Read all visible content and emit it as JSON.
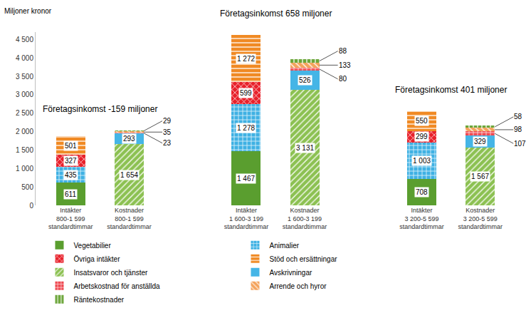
{
  "chart_data": {
    "type": "bar",
    "stacked": true,
    "data_labels": true,
    "grid": false,
    "legend": "bottom",
    "y_label": "Miljoner kronor",
    "annotations": [
      "Företagsinkomst -159 miljoner",
      "Företagsinkomst 658 miljoner",
      "Företagsinkomst 401 miljoner"
    ],
    "categories": [
      "Intäkter\n800-1 599\nstandardtimmar",
      "Kostnader\n800-1 599\nstandardtimmar",
      "Intäkter\n1 600-3 199\nstandardtimmar",
      "Kostnader\n1 600-3 199\nstandardtimmar",
      "Intäkter\n3 200-5 599\nstandardtimmar",
      "Kostnader\n3 200-5 599\nstandardtimmar"
    ],
    "ylim": [
      0,
      4700
    ],
    "yticks": [
      0,
      500,
      {
        "value": 1000,
        "label": "1 000"
      },
      {
        "value": 1500,
        "label": "1 500"
      },
      {
        "value": 2000,
        "label": "2 000"
      },
      {
        "value": 2500,
        "label": "2 500"
      },
      {
        "value": 3000,
        "label": "3 000"
      },
      {
        "value": 3500,
        "label": "3 500"
      },
      {
        "value": 4000,
        "label": "4 000"
      },
      {
        "value": 4500,
        "label": "4 500"
      }
    ],
    "series": [
      {
        "name": "Vegetabilier",
        "color": "#5a9e2f",
        "values": [
          611,
          null,
          1467,
          null,
          708,
          null
        ],
        "value_labels": [
          "611",
          null,
          "1 467",
          null,
          "708",
          null
        ]
      },
      {
        "name": "Animalier",
        "color": "#3fb1e3",
        "values": [
          435,
          null,
          1278,
          null,
          1003,
          null
        ],
        "value_labels": [
          "435",
          null,
          "1 278",
          null,
          "1 003",
          null
        ]
      },
      {
        "name": "Övriga intäkter",
        "color": "#e8212b",
        "values": [
          327,
          null,
          599,
          null,
          299,
          null
        ],
        "value_labels": [
          "327",
          null,
          "599",
          null,
          "299",
          null
        ]
      },
      {
        "name": "Stöd och ersättningar",
        "color": "#f08a24",
        "values": [
          501,
          null,
          1272,
          null,
          550,
          null
        ],
        "value_labels": [
          "501",
          null,
          "1 272",
          null,
          "550",
          null
        ]
      },
      {
        "name": "Insatsvaror och tjänster",
        "color": "#8cc152",
        "values": [
          null,
          1654,
          null,
          3131,
          null,
          1567
        ],
        "value_labels": [
          null,
          "1 654",
          null,
          "3 131",
          null,
          "1 567"
        ]
      },
      {
        "name": "Avskrivningar",
        "color": "#45b5e6",
        "values": [
          null,
          293,
          null,
          526,
          null,
          329
        ],
        "value_labels": [
          null,
          "293",
          null,
          "526",
          null,
          "329"
        ]
      },
      {
        "name": "Arbetskostnad för anställda",
        "color": "#ef4a52",
        "values": [
          null,
          23,
          null,
          80,
          null,
          107
        ],
        "value_labels": [
          null,
          "23",
          null,
          "80",
          null,
          "107"
        ]
      },
      {
        "name": "Arrende och hyror",
        "color": "#f4a35c",
        "values": [
          null,
          35,
          null,
          133,
          null,
          98
        ],
        "value_labels": [
          null,
          "35",
          null,
          "133",
          null,
          "98"
        ]
      },
      {
        "name": "Räntekostnader",
        "color": "#6ca63a",
        "values": [
          null,
          29,
          null,
          88,
          null,
          58
        ],
        "value_labels": [
          null,
          "29",
          null,
          "88",
          null,
          "58"
        ]
      }
    ]
  }
}
